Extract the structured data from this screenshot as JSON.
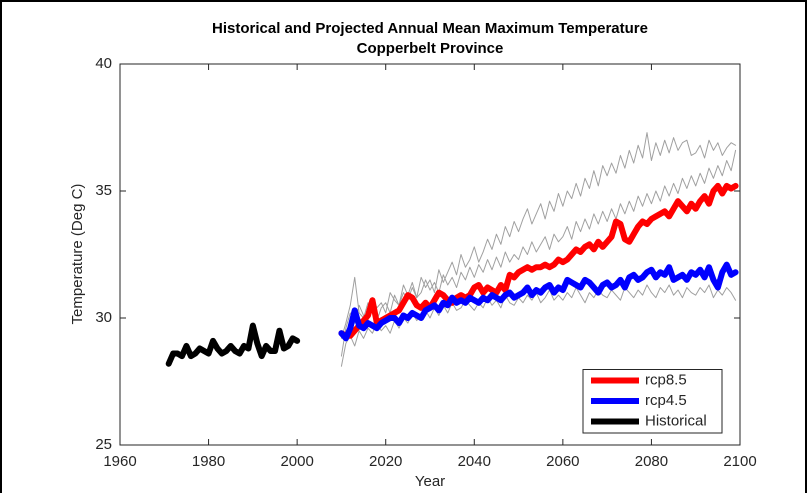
{
  "chart_data": {
    "type": "line",
    "title": "Historical and Projected Annual Mean Maximum Temperature",
    "subtitle": "Copperbelt Province",
    "x_label": "Year",
    "y_label": "Temperature (Deg C)",
    "xlim": [
      1960,
      2100
    ],
    "ylim": [
      25,
      40
    ],
    "xticks": [
      1960,
      1980,
      2000,
      2020,
      2040,
      2060,
      2080,
      2100
    ],
    "yticks": [
      25,
      30,
      35,
      40
    ],
    "grid": false,
    "legend": "southeast",
    "x": [
      2010,
      2011,
      2012,
      2013,
      2014,
      2015,
      2016,
      2017,
      2018,
      2019,
      2020,
      2021,
      2022,
      2023,
      2024,
      2025,
      2026,
      2027,
      2028,
      2029,
      2030,
      2031,
      2032,
      2033,
      2034,
      2035,
      2036,
      2037,
      2038,
      2039,
      2040,
      2041,
      2042,
      2043,
      2044,
      2045,
      2046,
      2047,
      2048,
      2049,
      2050,
      2051,
      2052,
      2053,
      2054,
      2055,
      2056,
      2057,
      2058,
      2059,
      2060,
      2061,
      2062,
      2063,
      2064,
      2065,
      2066,
      2067,
      2068,
      2069,
      2070,
      2071,
      2072,
      2073,
      2074,
      2075,
      2076,
      2077,
      2078,
      2079,
      2080,
      2081,
      2082,
      2083,
      2084,
      2085,
      2086,
      2087,
      2088,
      2089,
      2090,
      2091,
      2092,
      2093,
      2094,
      2095,
      2096,
      2097,
      2098,
      2099
    ],
    "ensemble": [
      {
        "color": "#a0a0a0",
        "values": [
          28.5,
          29.6,
          30.2,
          29.8,
          30.5,
          30.1,
          29.9,
          30.8,
          30.4,
          30.6,
          30.2,
          31.0,
          30.7,
          30.5,
          31.3,
          30.9,
          31.4,
          30.8,
          31.6,
          31.2,
          31.5,
          31.0,
          31.9,
          31.4,
          31.8,
          32.2,
          31.7,
          32.5,
          32.0,
          32.3,
          32.8,
          32.2,
          32.6,
          33.1,
          32.7,
          33.3,
          32.9,
          33.6,
          33.2,
          33.8,
          33.4,
          33.9,
          34.3,
          33.7,
          34.1,
          34.5,
          33.9,
          34.6,
          34.2,
          34.9,
          34.4,
          35.0,
          34.7,
          35.3,
          34.8,
          35.5,
          35.1,
          35.8,
          35.2,
          36.0,
          35.6,
          36.1,
          35.7,
          36.4,
          35.9,
          36.6,
          36.1,
          36.8,
          36.3,
          37.3,
          36.2,
          36.9,
          36.4,
          37.0,
          36.5,
          37.1,
          36.6,
          36.9,
          37.0,
          36.4,
          36.5,
          36.8,
          36.3,
          37.0,
          36.6,
          36.9,
          36.4,
          36.7,
          36.9,
          36.8
        ]
      },
      {
        "color": "#a0a0a0",
        "values": [
          28.1,
          29.0,
          29.3,
          28.9,
          29.5,
          29.2,
          29.6,
          29.4,
          29.8,
          29.5,
          29.7,
          29.4,
          29.9,
          29.6,
          30.0,
          29.8,
          30.2,
          29.9,
          30.1,
          30.3,
          30.0,
          30.4,
          30.1,
          30.5,
          30.2,
          30.6,
          30.3,
          30.4,
          30.7,
          30.5,
          30.3,
          30.6,
          30.4,
          30.8,
          30.5,
          30.7,
          30.4,
          30.9,
          30.6,
          30.5,
          30.8,
          30.6,
          30.9,
          30.7,
          31.0,
          30.6,
          30.8,
          31.1,
          30.7,
          30.9,
          30.7,
          31.0,
          30.8,
          31.2,
          30.9,
          30.6,
          31.0,
          30.8,
          31.1,
          30.9,
          30.8,
          31.1,
          30.9,
          30.7,
          31.2,
          31.0,
          30.8,
          31.1,
          30.9,
          31.3,
          31.0,
          30.8,
          31.2,
          31.0,
          31.3,
          30.9,
          31.1,
          30.8,
          31.2,
          31.0,
          30.9,
          31.2,
          31.0,
          31.3,
          30.8,
          31.1,
          30.9,
          31.2,
          31.0,
          30.7
        ]
      },
      {
        "color": "#a0a0a0",
        "values": [
          29.2,
          29.8,
          30.5,
          31.6,
          30.2,
          30.0,
          30.6,
          30.3,
          29.9,
          30.4,
          30.6,
          30.2,
          30.9,
          30.5,
          31.0,
          30.7,
          31.2,
          30.8,
          31.0,
          31.5,
          31.1,
          31.4,
          31.0,
          31.7,
          31.3,
          31.6,
          31.2,
          31.8,
          31.5,
          32.0,
          31.6,
          32.1,
          31.8,
          32.3,
          31.9,
          32.4,
          32.0,
          32.6,
          32.2,
          32.5,
          32.3,
          32.8,
          32.5,
          33.0,
          32.6,
          32.9,
          33.2,
          32.7,
          33.3,
          33.0,
          33.2,
          33.6,
          33.1,
          33.8,
          33.4,
          33.9,
          33.5,
          34.1,
          33.7,
          34.2,
          33.8,
          34.3,
          33.9,
          34.5,
          34.1,
          34.6,
          34.2,
          34.8,
          34.4,
          34.9,
          34.5,
          35.0,
          34.6,
          35.2,
          34.8,
          35.3,
          34.9,
          35.5,
          35.1,
          35.6,
          35.2,
          35.7,
          35.3,
          35.9,
          35.5,
          36.0,
          35.6,
          36.2,
          35.8,
          36.6
        ]
      }
    ],
    "series": [
      {
        "name": "rcp8.5",
        "color": "#ff0000",
        "values": [
          29.4,
          29.3,
          29.3,
          29.5,
          29.7,
          29.9,
          30.1,
          30.7,
          29.8,
          29.9,
          30.0,
          30.1,
          30.2,
          30.3,
          30.6,
          30.9,
          30.8,
          30.5,
          30.4,
          30.6,
          30.4,
          30.7,
          31.0,
          30.9,
          30.7,
          30.6,
          30.8,
          30.9,
          30.8,
          30.9,
          31.2,
          31.3,
          31.0,
          31.2,
          31.1,
          31.0,
          31.3,
          31.1,
          31.7,
          31.6,
          31.8,
          31.9,
          32.0,
          31.9,
          32.0,
          32.0,
          32.1,
          32.0,
          32.1,
          32.3,
          32.2,
          32.3,
          32.5,
          32.7,
          32.6,
          32.8,
          32.9,
          32.7,
          33.0,
          32.8,
          33.0,
          33.2,
          33.8,
          33.7,
          33.1,
          33.0,
          33.3,
          33.6,
          33.8,
          33.7,
          33.9,
          34.0,
          34.1,
          34.2,
          34.0,
          34.3,
          34.6,
          34.4,
          34.2,
          34.5,
          34.3,
          34.6,
          34.8,
          34.5,
          35.0,
          35.2,
          34.9,
          35.2,
          35.1,
          35.2
        ]
      },
      {
        "name": "rcp4.5",
        "color": "#0000ff",
        "values": [
          29.4,
          29.2,
          29.6,
          30.3,
          29.7,
          29.6,
          29.8,
          29.7,
          29.6,
          29.8,
          29.9,
          30.0,
          30.0,
          29.8,
          30.1,
          30.0,
          30.2,
          30.1,
          30.0,
          30.3,
          30.4,
          30.5,
          30.3,
          30.6,
          30.5,
          30.8,
          30.6,
          30.7,
          30.6,
          30.8,
          30.7,
          30.6,
          30.8,
          30.7,
          30.9,
          30.8,
          30.7,
          30.9,
          31.0,
          30.8,
          30.9,
          31.0,
          31.2,
          30.9,
          31.1,
          31.0,
          31.2,
          31.3,
          31.0,
          31.2,
          31.1,
          31.5,
          31.4,
          31.3,
          31.2,
          31.5,
          31.4,
          31.2,
          31.0,
          31.3,
          31.4,
          31.2,
          31.3,
          31.5,
          31.2,
          31.6,
          31.7,
          31.5,
          31.6,
          31.8,
          31.9,
          31.6,
          31.8,
          31.7,
          32.0,
          31.5,
          31.6,
          31.7,
          31.5,
          31.8,
          31.7,
          31.9,
          31.6,
          32.0,
          31.5,
          31.2,
          31.8,
          32.1,
          31.7,
          31.8
        ]
      },
      {
        "name": "Historical",
        "color": "#000000",
        "x": [
          1971,
          1972,
          1973,
          1974,
          1975,
          1976,
          1977,
          1978,
          1979,
          1980,
          1981,
          1982,
          1983,
          1984,
          1985,
          1986,
          1987,
          1988,
          1989,
          1990,
          1991,
          1992,
          1993,
          1994,
          1995,
          1996,
          1997,
          1998,
          1999,
          2000
        ],
        "values": [
          28.2,
          28.6,
          28.6,
          28.5,
          28.9,
          28.5,
          28.6,
          28.8,
          28.7,
          28.6,
          29.1,
          28.8,
          28.6,
          28.7,
          28.9,
          28.7,
          28.6,
          28.9,
          28.8,
          29.7,
          29.0,
          28.5,
          28.9,
          28.7,
          28.7,
          29.5,
          28.8,
          28.9,
          29.2,
          29.1
        ]
      }
    ]
  }
}
